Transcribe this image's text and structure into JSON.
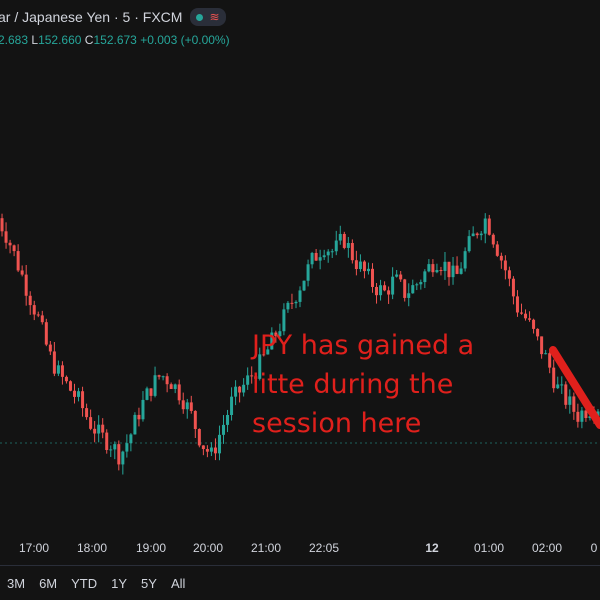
{
  "header": {
    "title": "ar / Japanese Yen · 5 · FXCM",
    "status_icon": "live-dot-icon",
    "waves_icon": "waves-icon",
    "ohlc": {
      "open_value": "2.683",
      "low_label": "L",
      "low_value": "152.660",
      "close_label": "C",
      "close_value": "152.673",
      "change": "+0.003 (+0.00%)"
    }
  },
  "annotation": {
    "text": "JPY has gained a litte during the session here",
    "color": "#e0201c"
  },
  "colors": {
    "up": "#26a69a",
    "down": "#ef5350",
    "background": "#131313",
    "axis_text": "#d1d4dc"
  },
  "time_axis": {
    "labels": [
      "17:00",
      "18:00",
      "19:00",
      "20:00",
      "21:00",
      "22:05",
      "12",
      "01:00",
      "02:00",
      "0"
    ]
  },
  "range_buttons": [
    "3M",
    "6M",
    "YTD",
    "1Y",
    "5Y",
    "All"
  ],
  "chart_data": {
    "type": "candlestick",
    "x_ticks": [
      "17:00",
      "18:00",
      "19:00",
      "20:00",
      "21:00",
      "22:05",
      "12",
      "01:00",
      "02:00"
    ],
    "price_level_line": 152.673,
    "ylim": [
      152.55,
      153.05
    ],
    "close_path": [
      152.95,
      152.92,
      152.88,
      152.84,
      152.8,
      152.75,
      152.72,
      152.7,
      152.68,
      152.65,
      152.63,
      152.62,
      152.6,
      152.63,
      152.67,
      152.7,
      152.72,
      152.71,
      152.69,
      152.66,
      152.62,
      152.6,
      152.64,
      152.68,
      152.7,
      152.72,
      152.74,
      152.77,
      152.8,
      152.83,
      152.86,
      152.89,
      152.91,
      152.9,
      152.92,
      152.89,
      152.87,
      152.85,
      152.84,
      152.86,
      152.84,
      152.85,
      152.87,
      152.89,
      152.88,
      152.86,
      152.9,
      152.93,
      152.95,
      152.91,
      152.87,
      152.82,
      152.8,
      152.77,
      152.74,
      152.7,
      152.68,
      152.66,
      152.67,
      152.673
    ],
    "trend_arrow": "down"
  }
}
